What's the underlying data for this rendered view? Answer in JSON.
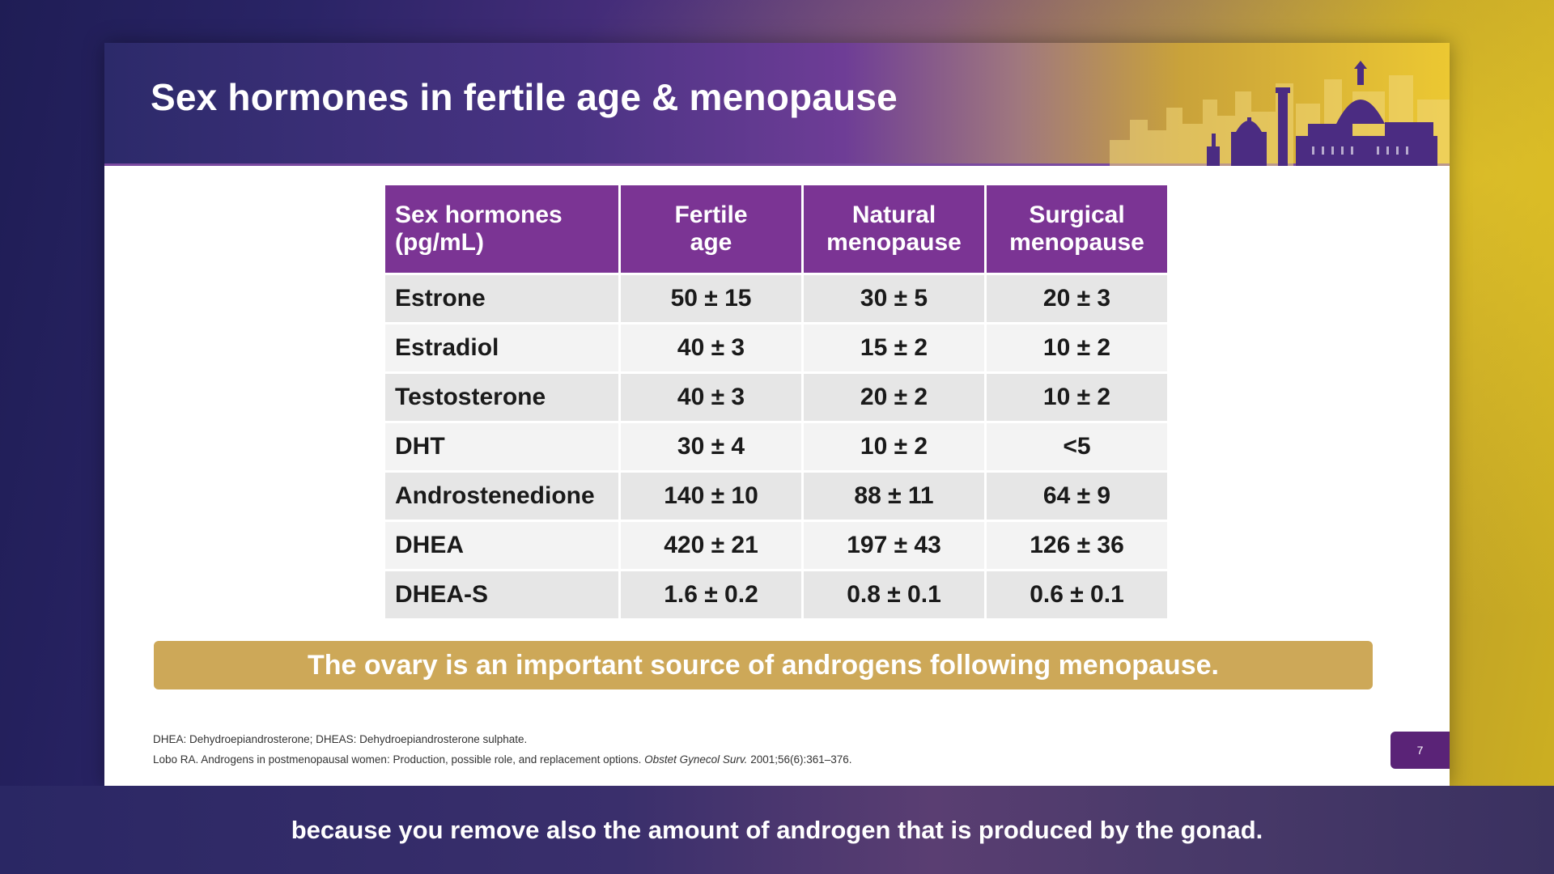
{
  "slide": {
    "title": "Sex hormones in fertile age & menopause",
    "table": {
      "headers": [
        [
          "Sex hormones",
          "(pg/mL)"
        ],
        [
          "Fertile",
          "age"
        ],
        [
          "Natural",
          "menopause"
        ],
        [
          "Surgical",
          "menopause"
        ]
      ],
      "rows": [
        [
          "Estrone",
          "50 ± 15",
          "30 ± 5",
          "20 ± 3"
        ],
        [
          "Estradiol",
          "40 ± 3",
          "15 ± 2",
          "10 ± 2"
        ],
        [
          "Testosterone",
          "40 ± 3",
          "20 ± 2",
          "10 ± 2"
        ],
        [
          "DHT",
          "30 ± 4",
          "10 ± 2",
          "<5"
        ],
        [
          "Androstenedione",
          "140 ± 10",
          "88 ± 11",
          "64 ± 9"
        ],
        [
          "DHEA",
          "420 ± 21",
          "197 ± 43",
          "126 ± 36"
        ],
        [
          "DHEA-S",
          "1.6 ± 0.2",
          "0.8 ± 0.1",
          "0.6 ± 0.1"
        ]
      ]
    },
    "callout": "The ovary is an important source of androgens following menopause.",
    "footnotes": {
      "abbreviations": "DHEA: Dehydroepiandrosterone; DHEAS: Dehydroepiandrosterone sulphate.",
      "reference_main": "Lobo RA. Androgens in postmenopausal women: Production, possible role, and replacement options. ",
      "reference_journal": "Obstet Gynecol Surv.",
      "reference_tail": " 2001;56(6):361–376."
    },
    "page_number": "7"
  },
  "caption": "because you remove also the amount of androgen that is produced by the gonad.",
  "colors": {
    "header_purple": "#7b3494",
    "callout_gold": "#cda858",
    "page_badge": "#5a2377"
  },
  "icons": {
    "skyline": "florence-skyline-illustration"
  }
}
